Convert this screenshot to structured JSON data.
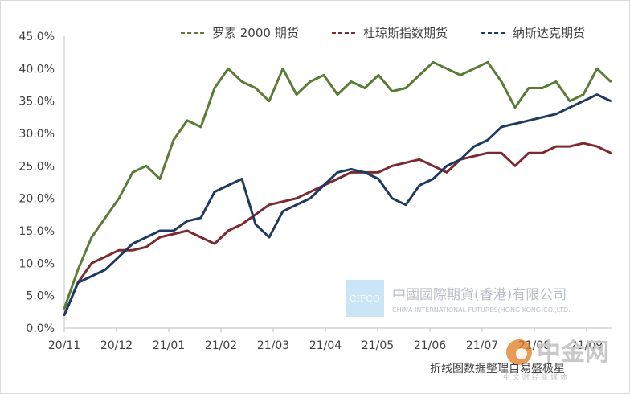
{
  "chart_data": {
    "type": "line",
    "title": "",
    "xlabel": "",
    "ylabel": "",
    "ylim": [
      0,
      45
    ],
    "y_ticks": [
      "0.0%",
      "5.0%",
      "10.0%",
      "15.0%",
      "20.0%",
      "25.0%",
      "30.0%",
      "35.0%",
      "40.0%",
      "45.0%"
    ],
    "x_ticks": [
      "20/11",
      "20/12",
      "21/01",
      "21/02",
      "21/03",
      "21/04",
      "21/05",
      "21/06",
      "21/07",
      "21/08",
      "21/09"
    ],
    "grid": false,
    "legend_position": "top",
    "x": [
      0,
      1,
      2,
      3,
      4,
      5,
      6,
      7,
      8,
      9,
      10,
      11,
      12,
      13,
      14,
      15,
      16,
      17,
      18,
      19,
      20,
      21,
      22,
      23,
      24,
      25,
      26,
      27,
      28,
      29,
      30,
      31,
      32,
      33,
      34,
      35,
      36,
      37,
      38,
      39,
      40
    ],
    "series": [
      {
        "name": "罗素 2000 期货",
        "color": "#5b7c36",
        "values": [
          3.0,
          9.0,
          14.0,
          17.0,
          20.0,
          24.0,
          25.0,
          23.0,
          29.0,
          32.0,
          31.0,
          37.0,
          40.0,
          38.0,
          37.0,
          35.0,
          40.0,
          36.0,
          38.0,
          39.0,
          36.0,
          38.0,
          37.0,
          39.0,
          36.5,
          37.0,
          39.0,
          41.0,
          40.0,
          39.0,
          40.0,
          41.0,
          38.0,
          34.0,
          37.0,
          37.0,
          38.0,
          35.0,
          36.0,
          40.0,
          38.0
        ]
      },
      {
        "name": "杜琼斯指数期货",
        "color": "#7b2a2e",
        "values": [
          2.0,
          7.0,
          10.0,
          11.0,
          12.0,
          12.0,
          12.5,
          14.0,
          14.5,
          15.0,
          14.0,
          13.0,
          15.0,
          16.0,
          17.5,
          19.0,
          19.5,
          20.0,
          21.0,
          22.0,
          23.0,
          24.0,
          24.0,
          24.0,
          25.0,
          25.5,
          26.0,
          25.0,
          24.0,
          26.0,
          26.5,
          27.0,
          27.0,
          25.0,
          27.0,
          27.0,
          28.0,
          28.0,
          28.5,
          28.0,
          27.0
        ]
      },
      {
        "name": "纳斯达克期货",
        "color": "#1f3a5f",
        "values": [
          2.0,
          7.0,
          8.0,
          9.0,
          11.0,
          13.0,
          14.0,
          15.0,
          15.0,
          16.5,
          17.0,
          21.0,
          22.0,
          23.0,
          16.0,
          14.0,
          18.0,
          19.0,
          20.0,
          22.0,
          24.0,
          24.5,
          24.0,
          23.0,
          20.0,
          19.0,
          22.0,
          23.0,
          25.0,
          26.0,
          28.0,
          29.0,
          31.0,
          31.5,
          32.0,
          32.5,
          33.0,
          34.0,
          35.0,
          36.0,
          35.0
        ]
      }
    ]
  },
  "watermark": {
    "logo_text": "CIFCO",
    "company_name": "中國國際期貨(香港)有限公司",
    "company_name_en": "CHINA INTERNATIONAL FUTURES(HONG KONG)CO.,LTD.",
    "color": "#b8bfc9"
  },
  "source_label": "折线图数据整理自易盛极星",
  "brand_watermark": {
    "name": "中金网",
    "sub": "中 文 财 经 新 媒 体",
    "logo_color": "#e07a1f"
  }
}
